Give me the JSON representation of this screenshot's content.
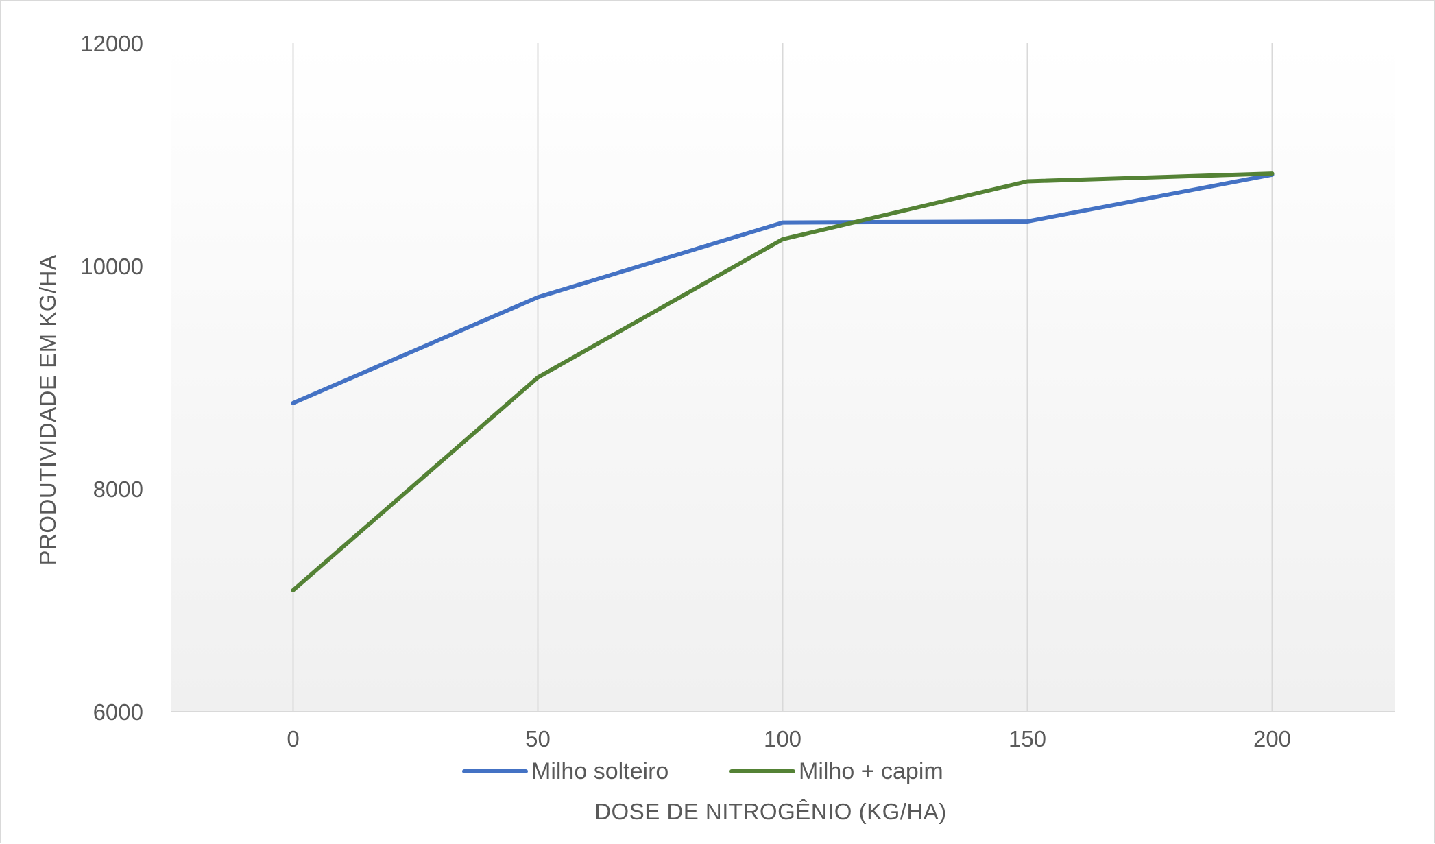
{
  "chart_data": {
    "type": "line",
    "title": "",
    "xlabel": "DOSE DE NITROGÊNIO (KG/HA)",
    "ylabel": "PRODUTIVIDADE EM KG/HA",
    "x": [
      0,
      50,
      100,
      150,
      200
    ],
    "x_tick_labels": [
      "0",
      "50",
      "100",
      "150",
      "200"
    ],
    "xlim": [
      -25,
      225
    ],
    "ylim": [
      6000,
      12000
    ],
    "y_ticks": [
      6000,
      8000,
      10000,
      12000
    ],
    "y_tick_labels": [
      "6000",
      "8000",
      "10000",
      "12000"
    ],
    "grid": "vertical",
    "legend_position": "bottom",
    "series": [
      {
        "name": "Milho solteiro",
        "color": "#4472c4",
        "values": [
          8770,
          9720,
          10390,
          10400,
          10820
        ]
      },
      {
        "name": "Milho + capim",
        "color": "#548235",
        "values": [
          7090,
          9000,
          10240,
          10760,
          10830
        ]
      }
    ]
  }
}
